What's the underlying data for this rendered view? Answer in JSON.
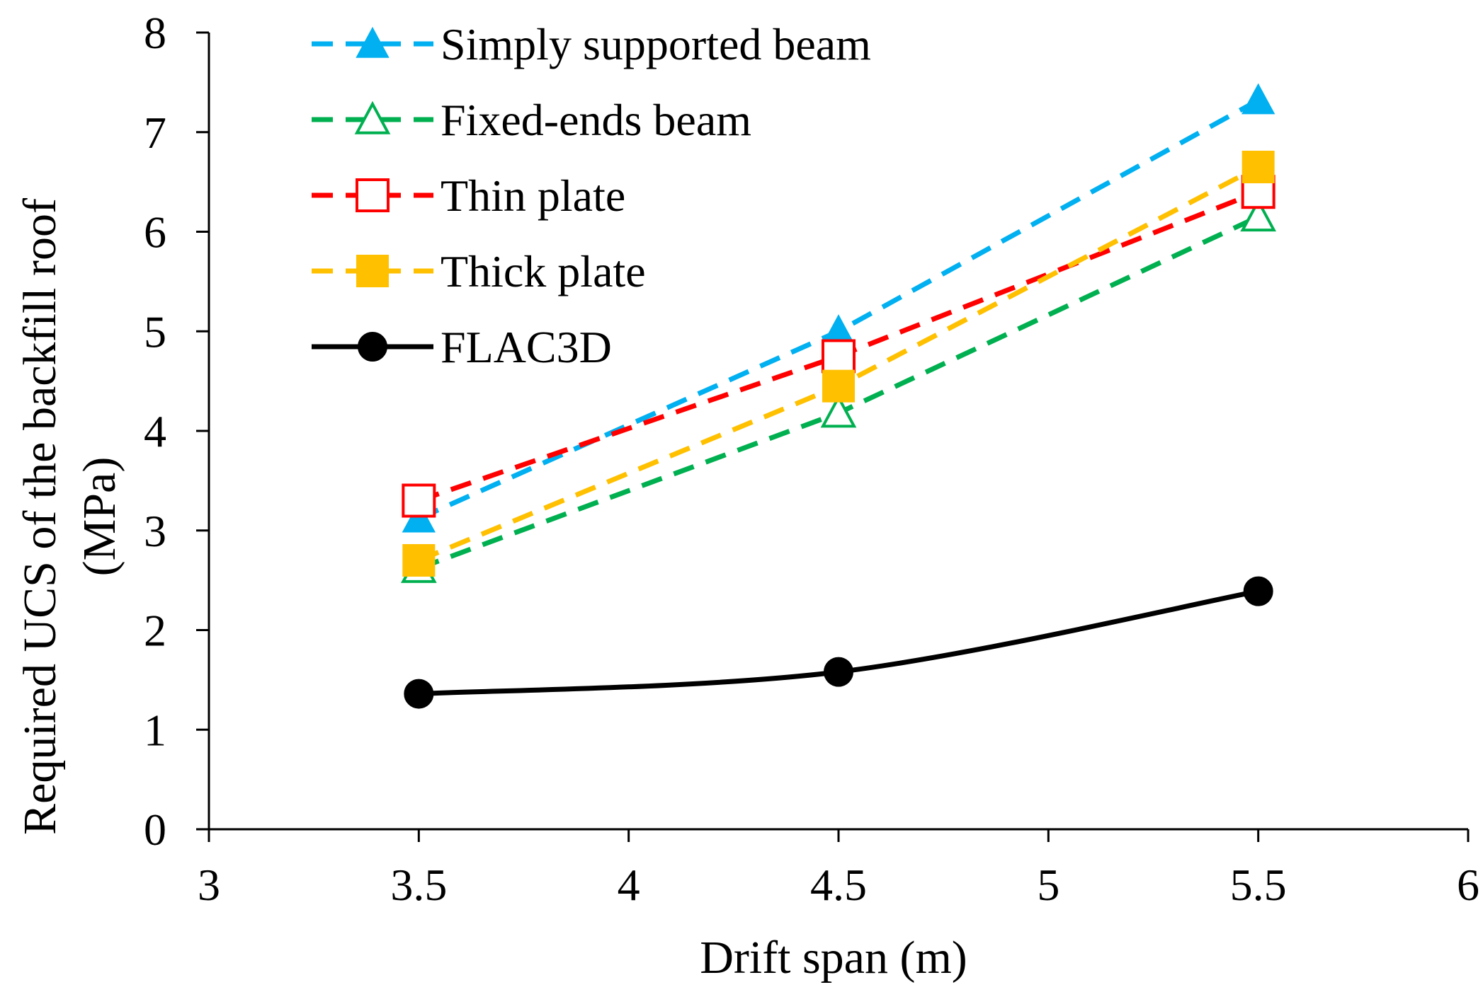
{
  "chart_data": {
    "type": "line",
    "title": "",
    "xlabel": "Drift span (m)",
    "ylabel_line1": "Required UCS of the backfill roof",
    "ylabel_line2": "(MPa)",
    "xlim": [
      3,
      6
    ],
    "ylim": [
      0,
      8
    ],
    "x_ticks": [
      3,
      3.5,
      4,
      4.5,
      5,
      5.5,
      6
    ],
    "x_tick_labels": [
      "3",
      "3.5",
      "4",
      "4.5",
      "5",
      "5.5",
      "6"
    ],
    "y_ticks": [
      0,
      1,
      2,
      3,
      4,
      5,
      6,
      7,
      8
    ],
    "y_tick_labels": [
      "0",
      "1",
      "2",
      "3",
      "4",
      "5",
      "6",
      "7",
      "8"
    ],
    "grid": false,
    "legend_position": "top-left",
    "x": [
      3.5,
      4.5,
      5.5
    ],
    "series": [
      {
        "name": "Simply supported beam",
        "values": [
          3.12,
          5.0,
          7.32
        ],
        "color": "#00b0f0",
        "marker": "triangle-filled",
        "dash": true
      },
      {
        "name": "Fixed-ends beam",
        "values": [
          2.62,
          4.18,
          6.15
        ],
        "color": "#00b050",
        "marker": "triangle-open",
        "dash": true
      },
      {
        "name": "Thin plate",
        "values": [
          3.3,
          4.75,
          6.4
        ],
        "color": "#ff0000",
        "marker": "square-open",
        "dash": true
      },
      {
        "name": "Thick plate",
        "values": [
          2.7,
          4.45,
          6.65
        ],
        "color": "#ffc000",
        "marker": "square-filled",
        "dash": true
      },
      {
        "name": "FLAC3D",
        "values": [
          1.36,
          1.58,
          2.39
        ],
        "color": "#000000",
        "marker": "circle-filled",
        "dash": false
      }
    ]
  }
}
